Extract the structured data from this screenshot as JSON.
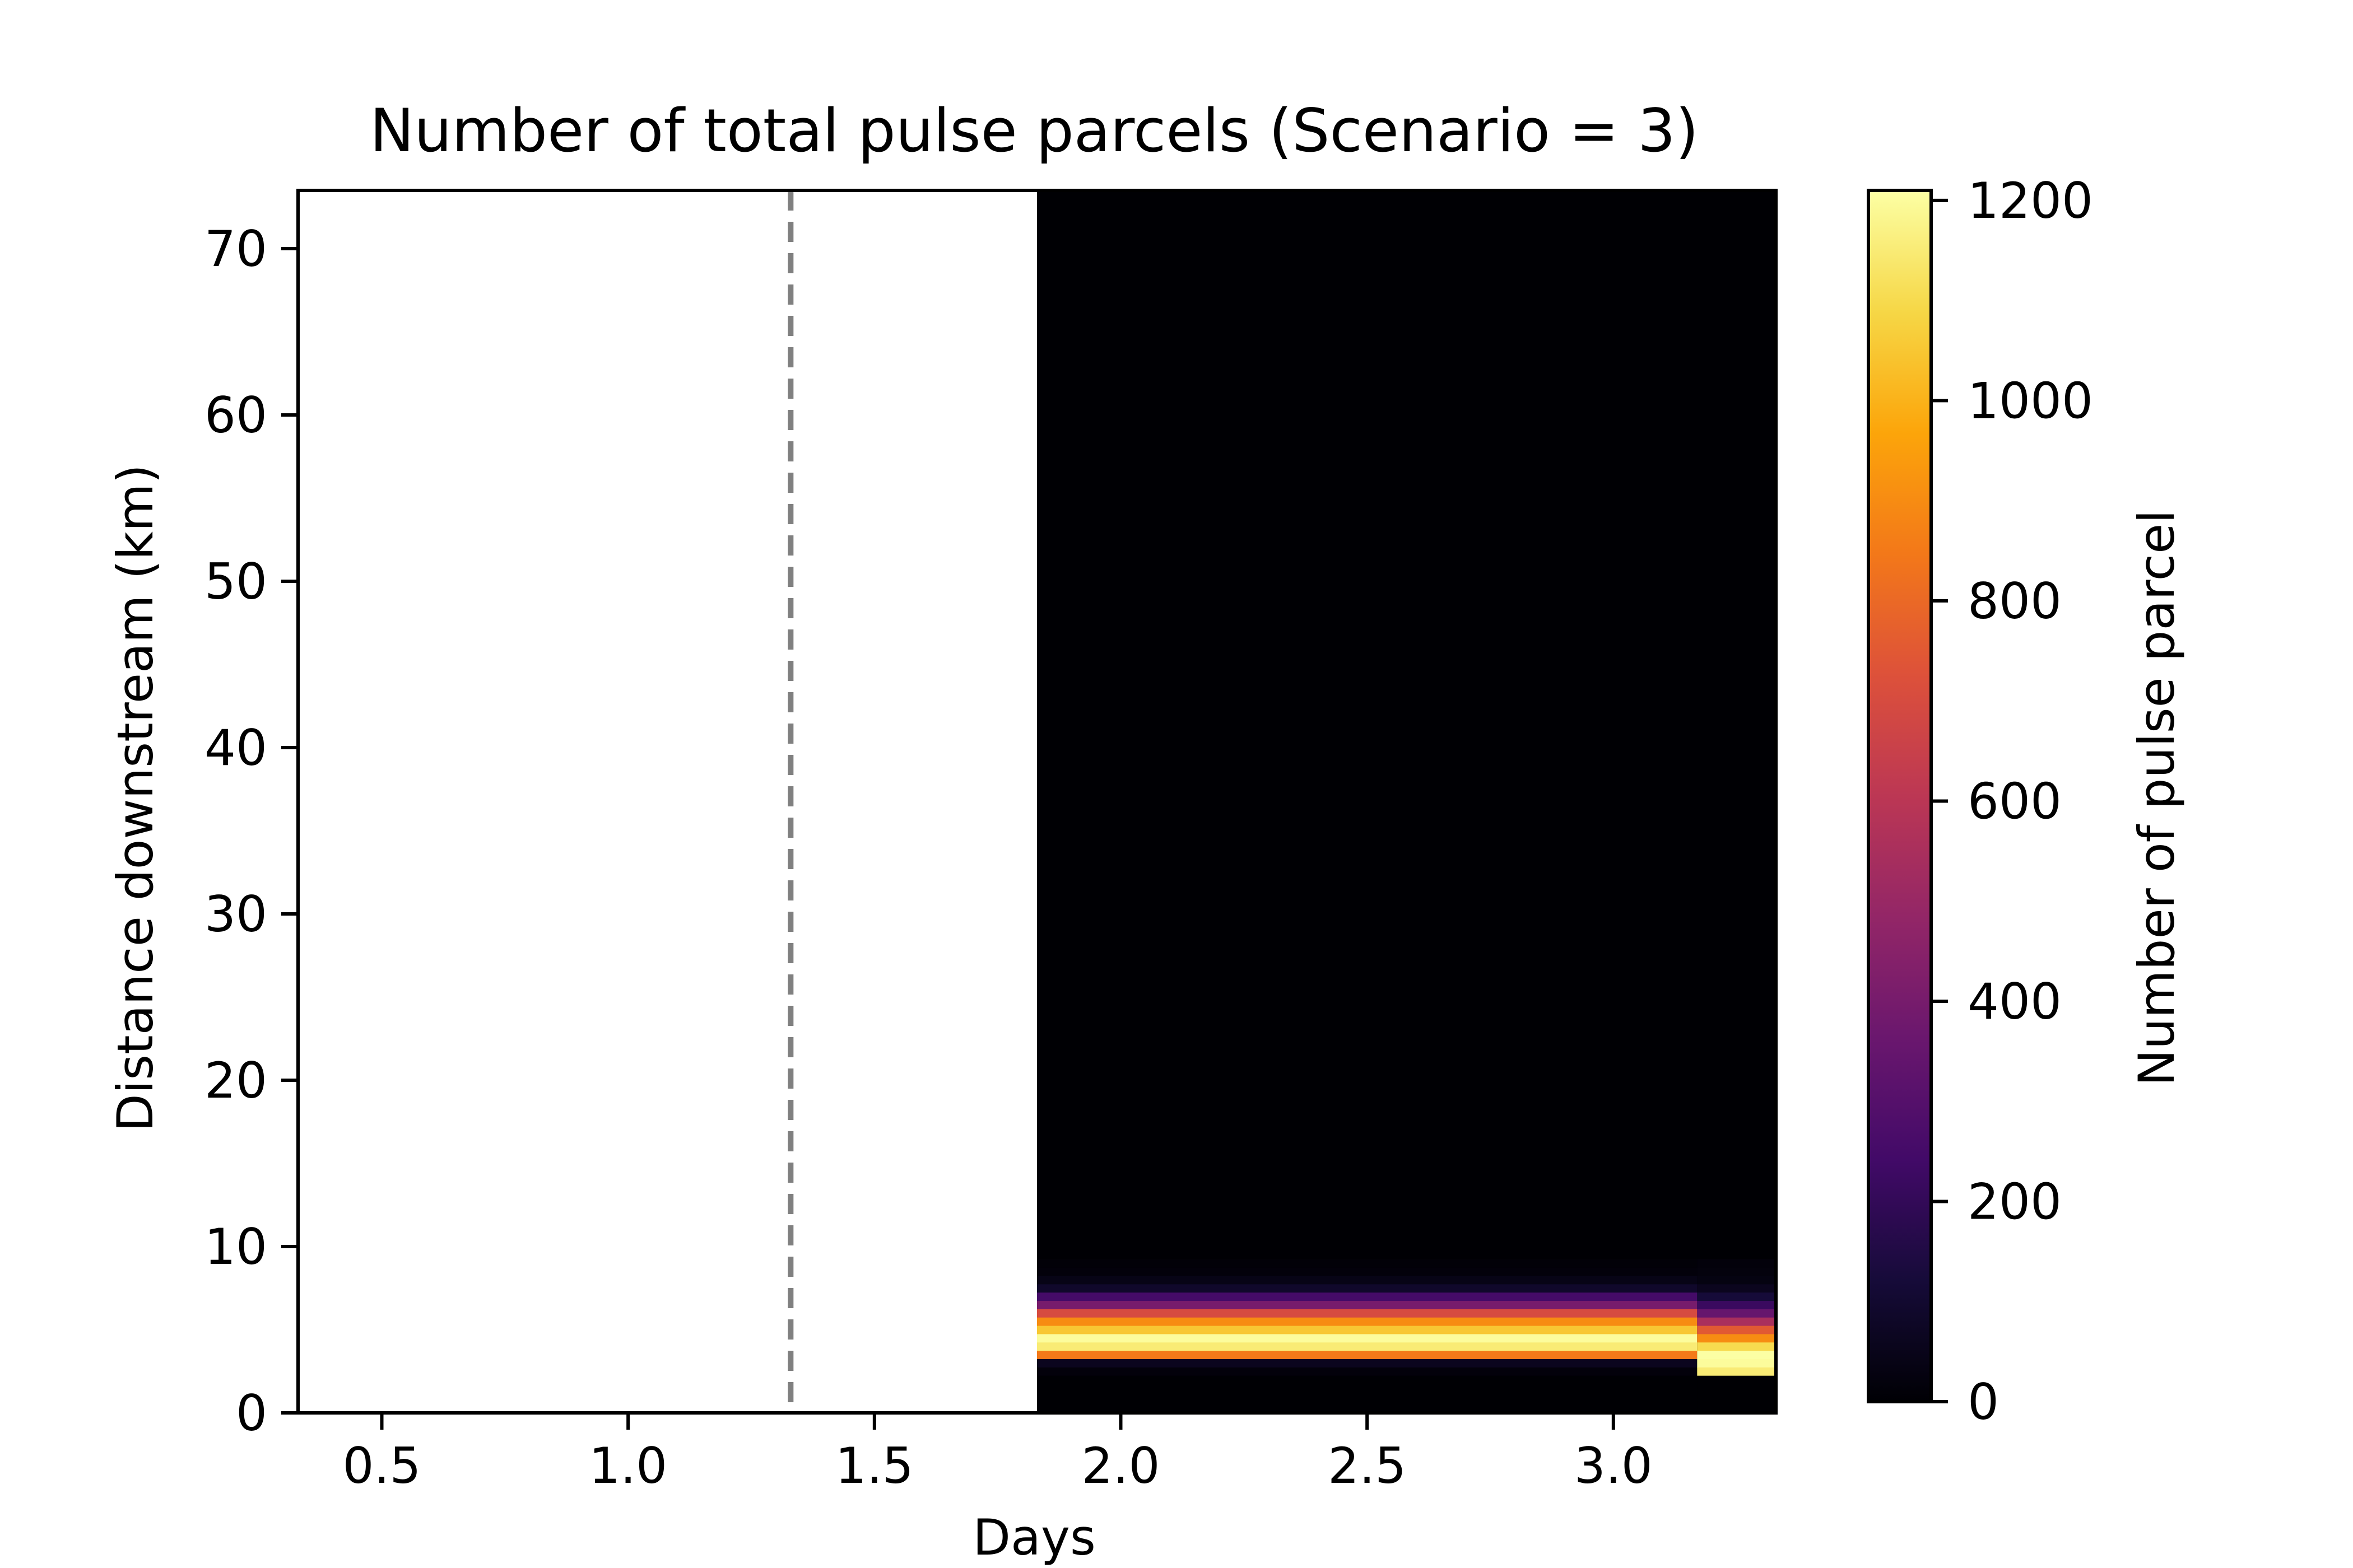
{
  "chart_data": {
    "type": "heatmap",
    "title": "Number of total pulse parcels (Scenario = 3)",
    "xlabel": "Days",
    "ylabel": "Distance downstream (km)",
    "xlim": [
      0.33,
      3.33
    ],
    "ylim": [
      0,
      73.5
    ],
    "x_ticks": [
      0.5,
      1.0,
      1.5,
      2.0,
      2.5,
      3.0
    ],
    "x_tick_labels": [
      "0.5",
      "1.0",
      "1.5",
      "2.0",
      "2.5",
      "3.0"
    ],
    "y_ticks": [
      0,
      10,
      20,
      30,
      40,
      50,
      60,
      70
    ],
    "y_tick_labels": [
      "0",
      "10",
      "20",
      "30",
      "40",
      "50",
      "60",
      "70"
    ],
    "grid": false,
    "colormap": "inferno",
    "data_x_start": 1.83,
    "data_x_end": 3.33,
    "cell_height_km": 0.5,
    "profile_y0_km": 0.25,
    "profile_label": "Number of pulse parcel (by distance downstream, km)",
    "profile": [
      0,
      0,
      0,
      0,
      15,
      60,
      850,
      1150,
      1200,
      1050,
      900,
      700,
      400,
      250,
      90,
      40,
      15,
      10
    ],
    "late_period_x_start": 3.17,
    "late_profile": [
      0,
      0,
      0,
      0,
      1150,
      1200,
      1210,
      1100,
      900,
      750,
      550,
      350,
      220,
      120,
      60,
      30,
      20,
      15
    ],
    "dashed_line_x": 1.33,
    "dashed_line_color": "#808080",
    "colorbar": {
      "label": "Number of pulse parcel",
      "min": 0,
      "max": 1210,
      "ticks": [
        0,
        200,
        400,
        600,
        800,
        1000,
        1200
      ],
      "tick_labels": [
        "0",
        "200",
        "400",
        "600",
        "800",
        "1000",
        "1200"
      ]
    }
  }
}
